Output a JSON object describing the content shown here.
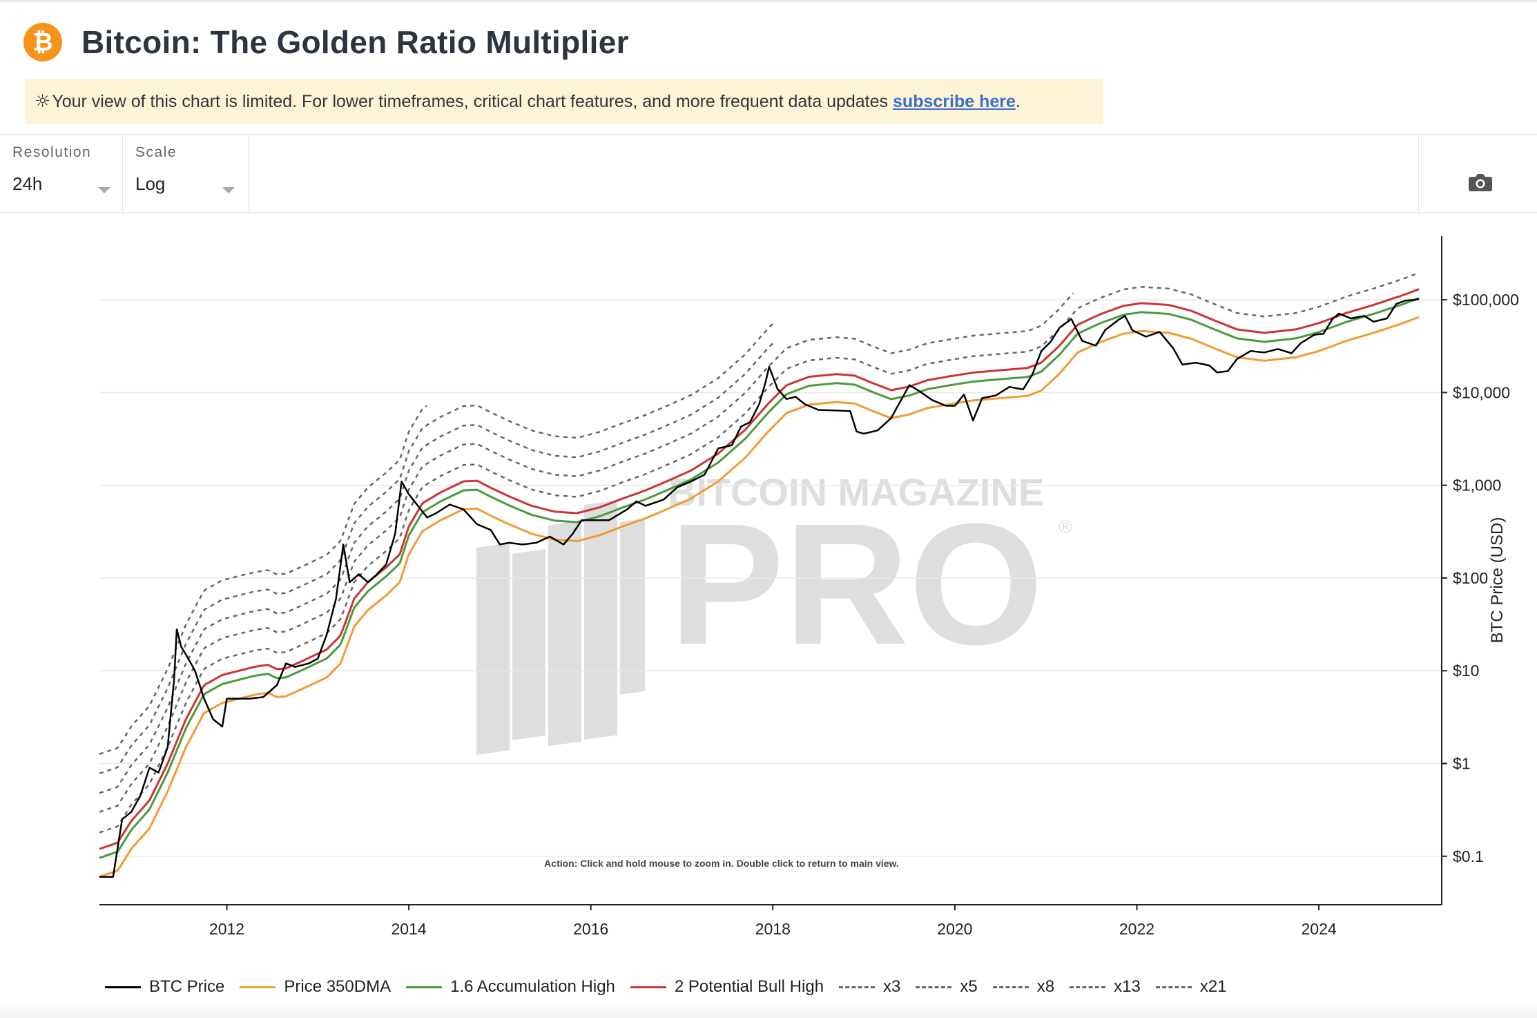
{
  "header": {
    "title": "Bitcoin: The Golden Ratio Multiplier",
    "logo_symbol": "₿"
  },
  "banner": {
    "icon": "sun-icon",
    "text": "Your view of this chart is limited. For lower timeframes, critical chart features, and more frequent data updates",
    "link_text": "subscribe here",
    "end_punct": "."
  },
  "controls": {
    "resolution": {
      "label": "Resolution",
      "value": "24h"
    },
    "scale": {
      "label": "Scale",
      "value": "Log"
    },
    "screenshot_icon": "camera-icon"
  },
  "colors": {
    "btc_price": "#000000",
    "dma350": "#f29b35",
    "accum": "#4a9a3c",
    "bull": "#cc3333",
    "multiple": "#666666",
    "watermark": "#dcdcdc",
    "grid": "#e8e8e8"
  },
  "chart_data": {
    "type": "line",
    "title": "Bitcoin: The Golden Ratio Multiplier",
    "y_scale": "log",
    "ylabel": "BTC Price (USD)",
    "ylim": [
      0.03,
      300000
    ],
    "y_ticks": [
      {
        "value": 0.1,
        "label": "$0.1"
      },
      {
        "value": 1,
        "label": "$1"
      },
      {
        "value": 10,
        "label": "$10"
      },
      {
        "value": 100,
        "label": "$100"
      },
      {
        "value": 1000,
        "label": "$1,000"
      },
      {
        "value": 10000,
        "label": "$10,000"
      },
      {
        "value": 100000,
        "label": "$100,000"
      }
    ],
    "xlim": [
      2010.6,
      2025.35
    ],
    "x_ticks": [
      {
        "value": 2012,
        "label": "2012"
      },
      {
        "value": 2014,
        "label": "2014"
      },
      {
        "value": 2016,
        "label": "2016"
      },
      {
        "value": 2018,
        "label": "2018"
      },
      {
        "value": 2020,
        "label": "2020"
      },
      {
        "value": 2022,
        "label": "2022"
      },
      {
        "value": 2024,
        "label": "2024"
      }
    ],
    "annotation": "Action: Click and hold mouse to zoom in.  Double click to return to main view.",
    "watermark": {
      "top": "BITCOIN MAGAZINE",
      "main": "PRO",
      "mark": "®"
    },
    "btc_price": {
      "name": "BTC Price",
      "points": [
        [
          2010.6,
          0.06
        ],
        [
          2010.75,
          0.06
        ],
        [
          2010.85,
          0.25
        ],
        [
          2010.95,
          0.3
        ],
        [
          2011.05,
          0.45
        ],
        [
          2011.15,
          0.9
        ],
        [
          2011.25,
          0.8
        ],
        [
          2011.35,
          1.5
        ],
        [
          2011.42,
          8
        ],
        [
          2011.45,
          28
        ],
        [
          2011.5,
          18
        ],
        [
          2011.55,
          15
        ],
        [
          2011.65,
          10
        ],
        [
          2011.75,
          5
        ],
        [
          2011.85,
          3
        ],
        [
          2011.95,
          2.5
        ],
        [
          2012.0,
          5
        ],
        [
          2012.1,
          5
        ],
        [
          2012.25,
          5
        ],
        [
          2012.4,
          5.2
        ],
        [
          2012.55,
          7
        ],
        [
          2012.65,
          12
        ],
        [
          2012.75,
          11
        ],
        [
          2012.9,
          12
        ],
        [
          2013.0,
          13.5
        ],
        [
          2013.1,
          25
        ],
        [
          2013.2,
          60
        ],
        [
          2013.28,
          230
        ],
        [
          2013.35,
          90
        ],
        [
          2013.45,
          110
        ],
        [
          2013.55,
          90
        ],
        [
          2013.65,
          110
        ],
        [
          2013.75,
          140
        ],
        [
          2013.85,
          300
        ],
        [
          2013.92,
          1100
        ],
        [
          2014.0,
          800
        ],
        [
          2014.1,
          600
        ],
        [
          2014.2,
          450
        ],
        [
          2014.3,
          500
        ],
        [
          2014.45,
          620
        ],
        [
          2014.6,
          550
        ],
        [
          2014.75,
          380
        ],
        [
          2014.9,
          330
        ],
        [
          2015.0,
          230
        ],
        [
          2015.1,
          240
        ],
        [
          2015.25,
          230
        ],
        [
          2015.4,
          240
        ],
        [
          2015.55,
          280
        ],
        [
          2015.7,
          230
        ],
        [
          2015.8,
          300
        ],
        [
          2015.9,
          420
        ],
        [
          2016.0,
          420
        ],
        [
          2016.2,
          420
        ],
        [
          2016.4,
          550
        ],
        [
          2016.5,
          670
        ],
        [
          2016.6,
          600
        ],
        [
          2016.8,
          700
        ],
        [
          2016.95,
          950
        ],
        [
          2017.1,
          1100
        ],
        [
          2017.25,
          1300
        ],
        [
          2017.4,
          2500
        ],
        [
          2017.55,
          2700
        ],
        [
          2017.65,
          4300
        ],
        [
          2017.75,
          4800
        ],
        [
          2017.85,
          7500
        ],
        [
          2017.92,
          13000
        ],
        [
          2017.96,
          19000
        ],
        [
          2018.05,
          11000
        ],
        [
          2018.15,
          8500
        ],
        [
          2018.25,
          9000
        ],
        [
          2018.35,
          7500
        ],
        [
          2018.5,
          6500
        ],
        [
          2018.7,
          6400
        ],
        [
          2018.85,
          6300
        ],
        [
          2018.92,
          3800
        ],
        [
          2019.0,
          3600
        ],
        [
          2019.15,
          3900
        ],
        [
          2019.3,
          5300
        ],
        [
          2019.4,
          8000
        ],
        [
          2019.5,
          12000
        ],
        [
          2019.6,
          10500
        ],
        [
          2019.75,
          8300
        ],
        [
          2019.9,
          7200
        ],
        [
          2020.0,
          7200
        ],
        [
          2020.1,
          9500
        ],
        [
          2020.2,
          5000
        ],
        [
          2020.3,
          8700
        ],
        [
          2020.45,
          9300
        ],
        [
          2020.6,
          11500
        ],
        [
          2020.75,
          10800
        ],
        [
          2020.85,
          15500
        ],
        [
          2020.95,
          28000
        ],
        [
          2021.05,
          35000
        ],
        [
          2021.15,
          50000
        ],
        [
          2021.28,
          62000
        ],
        [
          2021.4,
          36000
        ],
        [
          2021.55,
          32000
        ],
        [
          2021.65,
          47000
        ],
        [
          2021.8,
          61000
        ],
        [
          2021.87,
          67000
        ],
        [
          2021.95,
          47000
        ],
        [
          2022.1,
          40000
        ],
        [
          2022.25,
          45000
        ],
        [
          2022.4,
          30000
        ],
        [
          2022.5,
          20000
        ],
        [
          2022.65,
          21000
        ],
        [
          2022.8,
          19500
        ],
        [
          2022.88,
          16500
        ],
        [
          2023.0,
          17000
        ],
        [
          2023.1,
          23000
        ],
        [
          2023.25,
          28000
        ],
        [
          2023.4,
          27000
        ],
        [
          2023.55,
          29500
        ],
        [
          2023.7,
          26500
        ],
        [
          2023.8,
          34000
        ],
        [
          2023.95,
          42000
        ],
        [
          2024.05,
          43000
        ],
        [
          2024.15,
          62000
        ],
        [
          2024.22,
          71000
        ],
        [
          2024.35,
          63000
        ],
        [
          2024.5,
          67000
        ],
        [
          2024.6,
          58000
        ],
        [
          2024.75,
          63000
        ],
        [
          2024.85,
          90000
        ],
        [
          2024.95,
          98000
        ],
        [
          2025.05,
          100000
        ],
        [
          2025.1,
          102000
        ]
      ]
    },
    "dma_350": {
      "name": "Price 350DMA",
      "points": [
        [
          2010.6,
          0.06
        ],
        [
          2010.8,
          0.07
        ],
        [
          2010.95,
          0.12
        ],
        [
          2011.15,
          0.2
        ],
        [
          2011.35,
          0.5
        ],
        [
          2011.55,
          1.5
        ],
        [
          2011.75,
          3.5
        ],
        [
          2011.95,
          4.5
        ],
        [
          2012.3,
          5.5
        ],
        [
          2012.45,
          5.8
        ],
        [
          2012.55,
          5.2
        ],
        [
          2012.65,
          5.3
        ],
        [
          2012.85,
          6.5
        ],
        [
          2013.1,
          8.5
        ],
        [
          2013.25,
          12
        ],
        [
          2013.4,
          30
        ],
        [
          2013.55,
          45
        ],
        [
          2013.75,
          65
        ],
        [
          2013.9,
          90
        ],
        [
          2014.0,
          180
        ],
        [
          2014.15,
          320
        ],
        [
          2014.35,
          420
        ],
        [
          2014.6,
          550
        ],
        [
          2014.75,
          560
        ],
        [
          2014.9,
          470
        ],
        [
          2015.1,
          380
        ],
        [
          2015.35,
          300
        ],
        [
          2015.6,
          260
        ],
        [
          2015.85,
          250
        ],
        [
          2016.1,
          290
        ],
        [
          2016.35,
          360
        ],
        [
          2016.6,
          440
        ],
        [
          2016.85,
          560
        ],
        [
          2017.1,
          720
        ],
        [
          2017.4,
          1100
        ],
        [
          2017.7,
          2000
        ],
        [
          2017.95,
          3800
        ],
        [
          2018.15,
          6000
        ],
        [
          2018.4,
          7400
        ],
        [
          2018.7,
          7900
        ],
        [
          2018.9,
          7600
        ],
        [
          2019.1,
          6300
        ],
        [
          2019.3,
          5300
        ],
        [
          2019.5,
          5800
        ],
        [
          2019.7,
          6800
        ],
        [
          2019.95,
          7500
        ],
        [
          2020.2,
          8200
        ],
        [
          2020.5,
          8700
        ],
        [
          2020.8,
          9200
        ],
        [
          2020.95,
          10500
        ],
        [
          2021.15,
          16000
        ],
        [
          2021.35,
          27000
        ],
        [
          2021.6,
          35000
        ],
        [
          2021.85,
          43000
        ],
        [
          2022.05,
          46000
        ],
        [
          2022.35,
          44000
        ],
        [
          2022.6,
          38000
        ],
        [
          2022.85,
          30000
        ],
        [
          2023.1,
          24000
        ],
        [
          2023.4,
          22000
        ],
        [
          2023.75,
          24000
        ],
        [
          2024.0,
          28000
        ],
        [
          2024.3,
          36000
        ],
        [
          2024.6,
          44000
        ],
        [
          2024.9,
          55000
        ],
        [
          2025.1,
          65000
        ]
      ]
    },
    "series": [
      {
        "name": "1.6 Accumulation High",
        "multiplier": 1.6,
        "color_key": "accum",
        "style": "solid",
        "start": 2010.6,
        "end": 2025.1
      },
      {
        "name": "2 Potential Bull High",
        "multiplier": 2,
        "color_key": "bull",
        "style": "solid",
        "start": 2010.6,
        "end": 2025.1
      },
      {
        "name": "x3",
        "multiplier": 3,
        "color_key": "multiple",
        "style": "dotted",
        "start": 2010.6,
        "end": 2025.1
      },
      {
        "name": "x5",
        "multiplier": 5,
        "color_key": "multiple",
        "style": "dotted",
        "start": 2010.6,
        "end": 2021.3
      },
      {
        "name": "x8",
        "multiplier": 8,
        "color_key": "multiple",
        "style": "dotted",
        "start": 2010.6,
        "end": 2018.0
      },
      {
        "name": "x13",
        "multiplier": 13,
        "color_key": "multiple",
        "style": "dotted",
        "start": 2010.6,
        "end": 2018.0
      },
      {
        "name": "x21",
        "multiplier": 21,
        "color_key": "multiple",
        "style": "dotted",
        "start": 2010.6,
        "end": 2014.2
      }
    ],
    "legend": [
      {
        "name": "BTC Price",
        "color_key": "btc_price",
        "style": "solid"
      },
      {
        "name": "Price 350DMA",
        "color_key": "dma350",
        "style": "solid"
      },
      {
        "name": "1.6 Accumulation High",
        "color_key": "accum",
        "style": "solid"
      },
      {
        "name": "2 Potential Bull High",
        "color_key": "bull",
        "style": "solid"
      },
      {
        "name": "x3",
        "color_key": "multiple",
        "style": "dotted"
      },
      {
        "name": "x5",
        "color_key": "multiple",
        "style": "dotted"
      },
      {
        "name": "x8",
        "color_key": "multiple",
        "style": "dotted"
      },
      {
        "name": "x13",
        "color_key": "multiple",
        "style": "dotted"
      },
      {
        "name": "x21",
        "color_key": "multiple",
        "style": "dotted"
      }
    ]
  }
}
